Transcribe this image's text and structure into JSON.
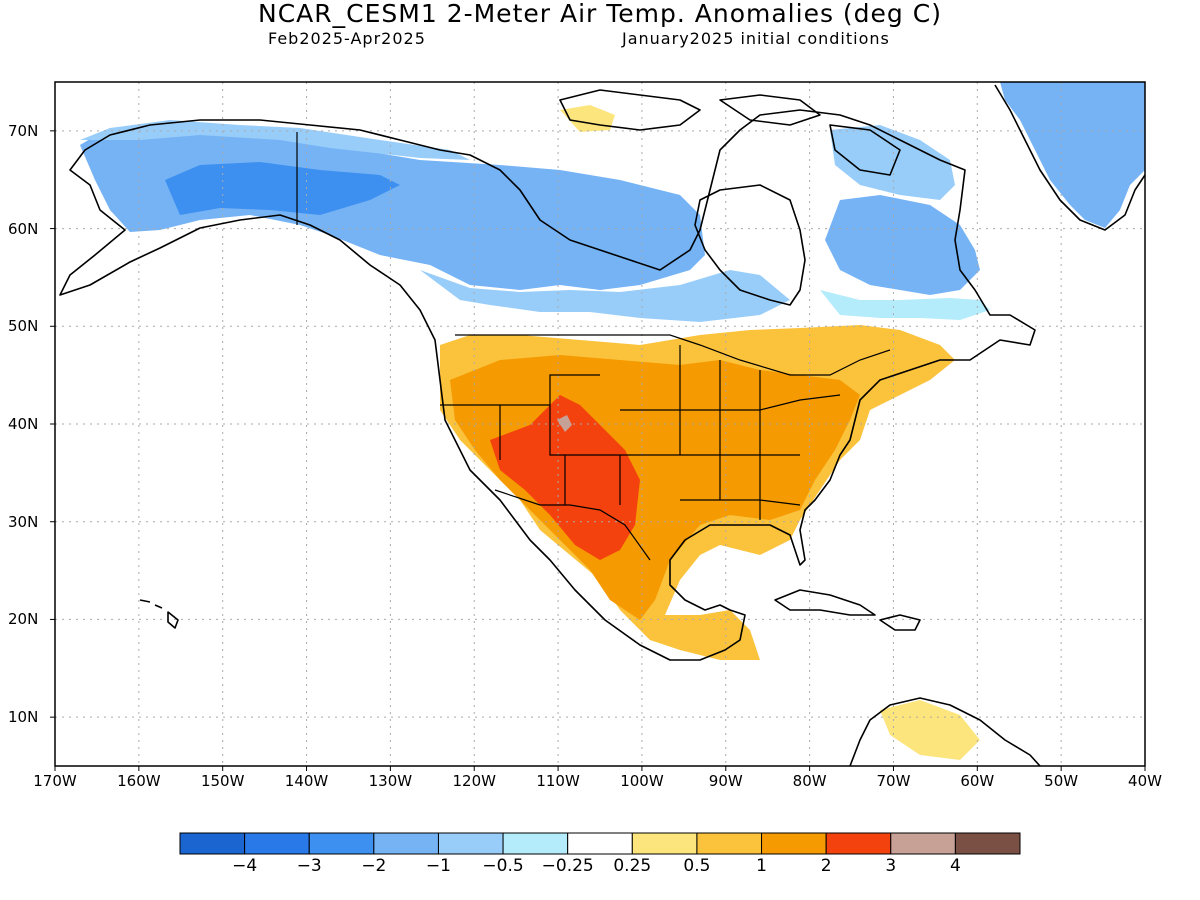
{
  "title": "NCAR_CESM1 2-Meter Air Temp. Anomalies (deg C)",
  "subtitle_left": "Feb2025-Apr2025",
  "subtitle_right": "January2025 initial conditions",
  "map": {
    "lon_range": [
      -170,
      -40
    ],
    "lat_range": [
      5,
      75
    ],
    "lon_ticks": [
      "170W",
      "160W",
      "150W",
      "140W",
      "130W",
      "120W",
      "110W",
      "100W",
      "90W",
      "80W",
      "70W",
      "60W",
      "50W",
      "40W"
    ],
    "lat_ticks": [
      "10N",
      "20N",
      "30N",
      "40N",
      "50N",
      "60N",
      "70N"
    ],
    "gridlines": true,
    "colors": {
      "land_outline": "#000000",
      "ocean": "#ffffff"
    }
  },
  "colorbar": {
    "colors": [
      "#1a65d0",
      "#2979e8",
      "#3d8ff0",
      "#75b3f5",
      "#98cdfa",
      "#b4ecfc",
      "#ffffff",
      "#fde57e",
      "#fbc23c",
      "#f59a00",
      "#f4420e",
      "#c7a096",
      "#7a5045"
    ],
    "labels": [
      "−4",
      "−3",
      "−2",
      "−1",
      "−0.5",
      "−0.25",
      "0.25",
      "0.5",
      "1",
      "2",
      "3",
      "4"
    ]
  }
}
